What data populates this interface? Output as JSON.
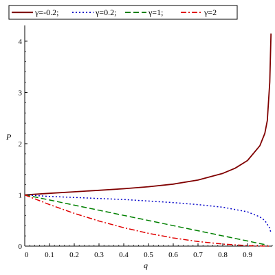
{
  "chart_data": {
    "type": "line",
    "xlabel": "q",
    "ylabel": "P",
    "xlim": [
      0,
      1
    ],
    "ylim": [
      0,
      4.2
    ],
    "xticks": [
      "0",
      "0.1",
      "0.2",
      "0.3",
      "0.4",
      "0.5",
      "0.6",
      "0.7",
      "0.8",
      "0.9"
    ],
    "yticks": [
      "0",
      "1",
      "2",
      "3",
      "4"
    ],
    "legend_position": "top",
    "grid": false,
    "series": [
      {
        "name": "γ=-0.2;",
        "color": "#800000",
        "dash": "solid",
        "x": [
          0,
          0.1,
          0.2,
          0.3,
          0.4,
          0.5,
          0.6,
          0.7,
          0.8,
          0.85,
          0.9,
          0.95,
          0.97,
          0.98,
          0.99,
          0.995
        ],
        "y": [
          1.0,
          1.03,
          1.06,
          1.09,
          1.12,
          1.16,
          1.21,
          1.29,
          1.42,
          1.52,
          1.67,
          1.96,
          2.2,
          2.45,
          3.2,
          4.15
        ]
      },
      {
        "name": "γ=0.2;",
        "color": "#0000c8",
        "dash": "dotted",
        "x": [
          0,
          0.1,
          0.2,
          0.3,
          0.4,
          0.5,
          0.6,
          0.7,
          0.8,
          0.9,
          0.95,
          0.97,
          0.99,
          0.995
        ],
        "y": [
          1.0,
          0.97,
          0.95,
          0.93,
          0.91,
          0.88,
          0.85,
          0.81,
          0.76,
          0.67,
          0.57,
          0.5,
          0.35,
          0.25
        ]
      },
      {
        "name": "γ=1;",
        "color": "#008000",
        "dash": "dashed",
        "x": [
          0,
          0.1,
          0.2,
          0.3,
          0.4,
          0.5,
          0.6,
          0.7,
          0.8,
          0.9,
          0.95,
          0.98
        ],
        "y": [
          1.0,
          0.9,
          0.8,
          0.7,
          0.6,
          0.5,
          0.4,
          0.3,
          0.2,
          0.1,
          0.05,
          0.02
        ]
      },
      {
        "name": "γ=2",
        "color": "#e00000",
        "dash": "dashdot",
        "x": [
          0,
          0.1,
          0.2,
          0.3,
          0.4,
          0.5,
          0.6,
          0.7,
          0.8,
          0.9,
          0.95,
          0.99
        ],
        "y": [
          1.0,
          0.81,
          0.64,
          0.49,
          0.36,
          0.25,
          0.16,
          0.09,
          0.04,
          0.01,
          0.0025,
          0.0
        ]
      }
    ]
  }
}
